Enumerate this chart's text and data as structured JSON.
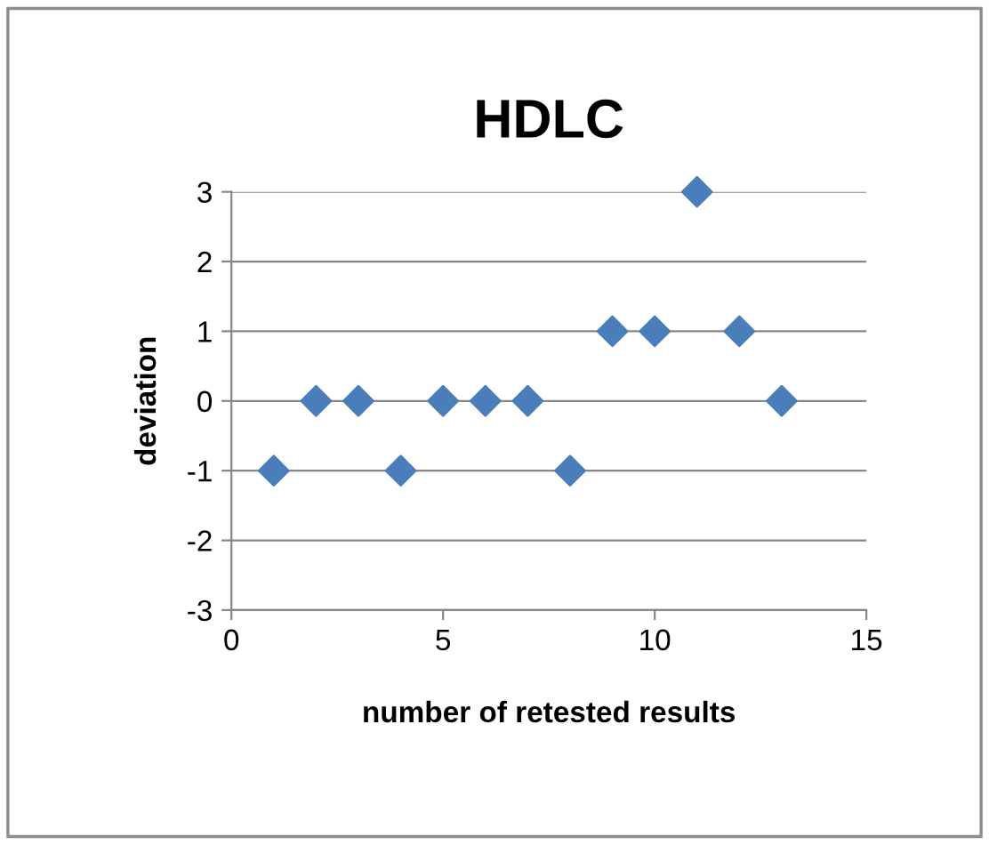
{
  "chart_data": {
    "type": "scatter",
    "title": "HDLC",
    "xlabel": "number of retested results",
    "ylabel": "deviation",
    "x": [
      1,
      2,
      3,
      4,
      5,
      6,
      7,
      8,
      9,
      10,
      11,
      12,
      13
    ],
    "series": [
      {
        "color": "#4a7ebb",
        "values": [
          -1,
          0,
          0,
          -1,
          0,
          0,
          0,
          -1,
          1,
          1,
          3,
          1,
          0
        ]
      }
    ],
    "xlim": [
      0,
      15
    ],
    "xticks": [
      0,
      5,
      10,
      15
    ],
    "ylim": [
      -3,
      3
    ],
    "yticks": [
      {
        "value": -3,
        "label": "-3"
      },
      {
        "value": -2,
        "label": "-2"
      },
      {
        "value": -1,
        "label": "-1"
      },
      0,
      1,
      2,
      3
    ],
    "grid": "y",
    "marker": "diamond",
    "legend": false
  }
}
